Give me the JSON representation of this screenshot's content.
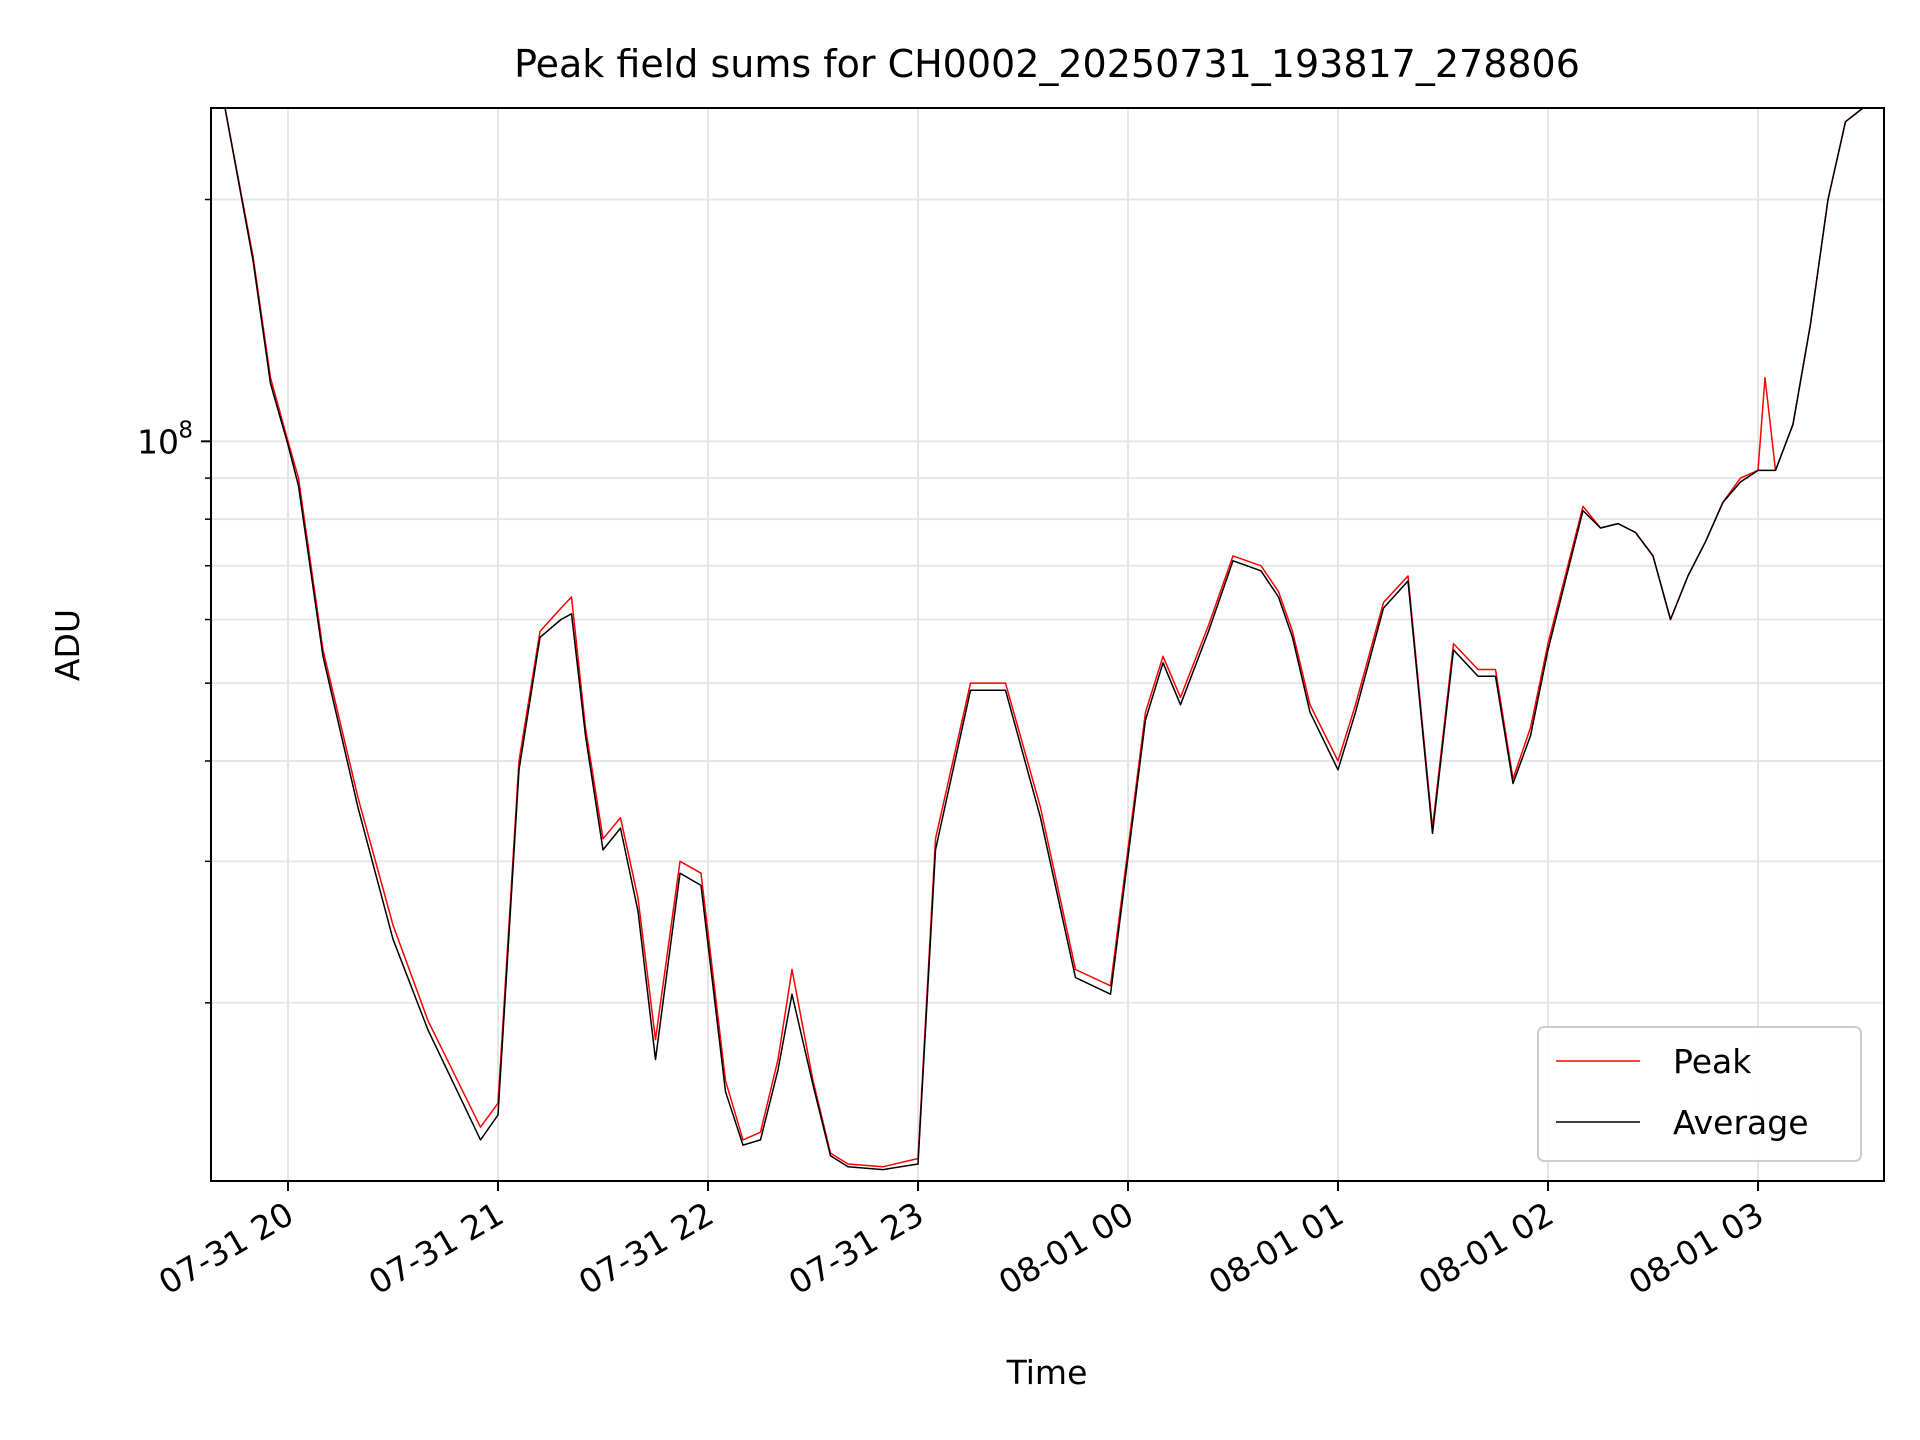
{
  "chart_data": {
    "type": "line",
    "title": "Peak field sums for CH0002_20250731_193817_278806",
    "xlabel": "Time",
    "ylabel": "ADU",
    "yscale": "log",
    "grid": true,
    "legend_position": "lower-right",
    "x_ticks": [
      "07-31 20",
      "07-31 21",
      "07-31 22",
      "07-31 23",
      "08-01 00",
      "08-01 01",
      "08-01 02",
      "08-01 03"
    ],
    "y_tick_label": {
      "base": "10",
      "exponent": "8"
    },
    "xlim": [
      "2025-07-31 19:38",
      "2025-08-01 03:36"
    ],
    "ylim": [
      12000000,
      260000000
    ],
    "series": [
      {
        "name": "Peak",
        "color": "#ff0000",
        "x": [
          "2025-07-31 19:38",
          "2025-07-31 19:42",
          "2025-07-31 19:50",
          "2025-07-31 19:55",
          "2025-07-31 20:00",
          "2025-07-31 20:03",
          "2025-07-31 20:10",
          "2025-07-31 20:20",
          "2025-07-31 20:30",
          "2025-07-31 20:40",
          "2025-07-31 20:50",
          "2025-07-31 20:55",
          "2025-07-31 21:00",
          "2025-07-31 21:06",
          "2025-07-31 21:12",
          "2025-07-31 21:18",
          "2025-07-31 21:21",
          "2025-07-31 21:25",
          "2025-07-31 21:30",
          "2025-07-31 21:35",
          "2025-07-31 21:40",
          "2025-07-31 21:45",
          "2025-07-31 21:52",
          "2025-07-31 21:58",
          "2025-07-31 22:05",
          "2025-07-31 22:10",
          "2025-07-31 22:15",
          "2025-07-31 22:20",
          "2025-07-31 22:24",
          "2025-07-31 22:30",
          "2025-07-31 22:35",
          "2025-07-31 22:40",
          "2025-07-31 22:50",
          "2025-07-31 23:00",
          "2025-07-31 23:05",
          "2025-07-31 23:15",
          "2025-07-31 23:25",
          "2025-07-31 23:35",
          "2025-07-31 23:45",
          "2025-07-31 23:55",
          "2025-08-01 00:05",
          "2025-08-01 00:10",
          "2025-08-01 00:15",
          "2025-08-01 00:23",
          "2025-08-01 00:30",
          "2025-08-01 00:38",
          "2025-08-01 00:43",
          "2025-08-01 00:47",
          "2025-08-01 00:52",
          "2025-08-01 01:00",
          "2025-08-01 01:05",
          "2025-08-01 01:13",
          "2025-08-01 01:20",
          "2025-08-01 01:27",
          "2025-08-01 01:33",
          "2025-08-01 01:40",
          "2025-08-01 01:45",
          "2025-08-01 01:50",
          "2025-08-01 01:55",
          "2025-08-01 02:00",
          "2025-08-01 02:10",
          "2025-08-01 02:15",
          "2025-08-01 02:20",
          "2025-08-01 02:25",
          "2025-08-01 02:30",
          "2025-08-01 02:35",
          "2025-08-01 02:40",
          "2025-08-01 02:45",
          "2025-08-01 02:50",
          "2025-08-01 02:55",
          "2025-08-01 03:00",
          "2025-08-01 03:02",
          "2025-08-01 03:05",
          "2025-08-01 03:10",
          "2025-08-01 03:15",
          "2025-08-01 03:20",
          "2025-08-01 03:25",
          "2025-08-01 03:30",
          "2025-08-01 03:36"
        ],
        "values": [
          260000000,
          260000000,
          170000000,
          120000000,
          100000000,
          90000000,
          55000000,
          36000000,
          25000000,
          19000000,
          15500000,
          14000000,
          15000000,
          40000000,
          58000000,
          62000000,
          64000000,
          44000000,
          32000000,
          34000000,
          27000000,
          18000000,
          30000000,
          29000000,
          16000000,
          13500000,
          13800000,
          17000000,
          22000000,
          16000000,
          13000000,
          12600000,
          12500000,
          12800000,
          32000000,
          50000000,
          50000000,
          35000000,
          22000000,
          21000000,
          46000000,
          54000000,
          48000000,
          59000000,
          72000000,
          70000000,
          65000000,
          58000000,
          47000000,
          40000000,
          47000000,
          63000000,
          68000000,
          33000000,
          56000000,
          52000000,
          52000000,
          38000000,
          44000000,
          56000000,
          83000000,
          78000000,
          79000000,
          77000000,
          72000000,
          60000000,
          68000000,
          75000000,
          84000000,
          90000000,
          92000000,
          120000000,
          92000000,
          105000000,
          140000000,
          200000000,
          250000000,
          260000000,
          260000000
        ]
      },
      {
        "name": "Average",
        "color": "#000000",
        "x": [
          "2025-07-31 19:38",
          "2025-07-31 19:42",
          "2025-07-31 19:50",
          "2025-07-31 19:55",
          "2025-07-31 20:00",
          "2025-07-31 20:03",
          "2025-07-31 20:10",
          "2025-07-31 20:20",
          "2025-07-31 20:30",
          "2025-07-31 20:40",
          "2025-07-31 20:50",
          "2025-07-31 20:55",
          "2025-07-31 21:00",
          "2025-07-31 21:06",
          "2025-07-31 21:12",
          "2025-07-31 21:18",
          "2025-07-31 21:21",
          "2025-07-31 21:25",
          "2025-07-31 21:30",
          "2025-07-31 21:35",
          "2025-07-31 21:40",
          "2025-07-31 21:45",
          "2025-07-31 21:52",
          "2025-07-31 21:58",
          "2025-07-31 22:05",
          "2025-07-31 22:10",
          "2025-07-31 22:15",
          "2025-07-31 22:20",
          "2025-07-31 22:24",
          "2025-07-31 22:30",
          "2025-07-31 22:35",
          "2025-07-31 22:40",
          "2025-07-31 22:50",
          "2025-07-31 23:00",
          "2025-07-31 23:05",
          "2025-07-31 23:15",
          "2025-07-31 23:25",
          "2025-07-31 23:35",
          "2025-07-31 23:45",
          "2025-07-31 23:55",
          "2025-08-01 00:05",
          "2025-08-01 00:10",
          "2025-08-01 00:15",
          "2025-08-01 00:23",
          "2025-08-01 00:30",
          "2025-08-01 00:38",
          "2025-08-01 00:43",
          "2025-08-01 00:47",
          "2025-08-01 00:52",
          "2025-08-01 01:00",
          "2025-08-01 01:05",
          "2025-08-01 01:13",
          "2025-08-01 01:20",
          "2025-08-01 01:27",
          "2025-08-01 01:33",
          "2025-08-01 01:40",
          "2025-08-01 01:45",
          "2025-08-01 01:50",
          "2025-08-01 01:55",
          "2025-08-01 02:00",
          "2025-08-01 02:10",
          "2025-08-01 02:15",
          "2025-08-01 02:20",
          "2025-08-01 02:25",
          "2025-08-01 02:30",
          "2025-08-01 02:35",
          "2025-08-01 02:40",
          "2025-08-01 02:45",
          "2025-08-01 02:50",
          "2025-08-01 02:55",
          "2025-08-01 03:00",
          "2025-08-01 03:02",
          "2025-08-01 03:05",
          "2025-08-01 03:10",
          "2025-08-01 03:15",
          "2025-08-01 03:20",
          "2025-08-01 03:25",
          "2025-08-01 03:30",
          "2025-08-01 03:36"
        ],
        "values": [
          260000000,
          260000000,
          168000000,
          118000000,
          99000000,
          88000000,
          54000000,
          35000000,
          24000000,
          18500000,
          15000000,
          13500000,
          14500000,
          39000000,
          57000000,
          60000000,
          61000000,
          43000000,
          31000000,
          33000000,
          26000000,
          17000000,
          29000000,
          28000000,
          15500000,
          13300000,
          13500000,
          16500000,
          20500000,
          15800000,
          12900000,
          12500000,
          12400000,
          12600000,
          31000000,
          49000000,
          49000000,
          34000000,
          21500000,
          20500000,
          45000000,
          53000000,
          47000000,
          58000000,
          71000000,
          69000000,
          64000000,
          57000000,
          46000000,
          39000000,
          46000000,
          62000000,
          67000000,
          32500000,
          55000000,
          51000000,
          51000000,
          37500000,
          43000000,
          55000000,
          82000000,
          78000000,
          79000000,
          77000000,
          72000000,
          60000000,
          68000000,
          75000000,
          84000000,
          89000000,
          92000000,
          92000000,
          92000000,
          105000000,
          140000000,
          200000000,
          250000000,
          260000000,
          260000000
        ]
      }
    ]
  }
}
